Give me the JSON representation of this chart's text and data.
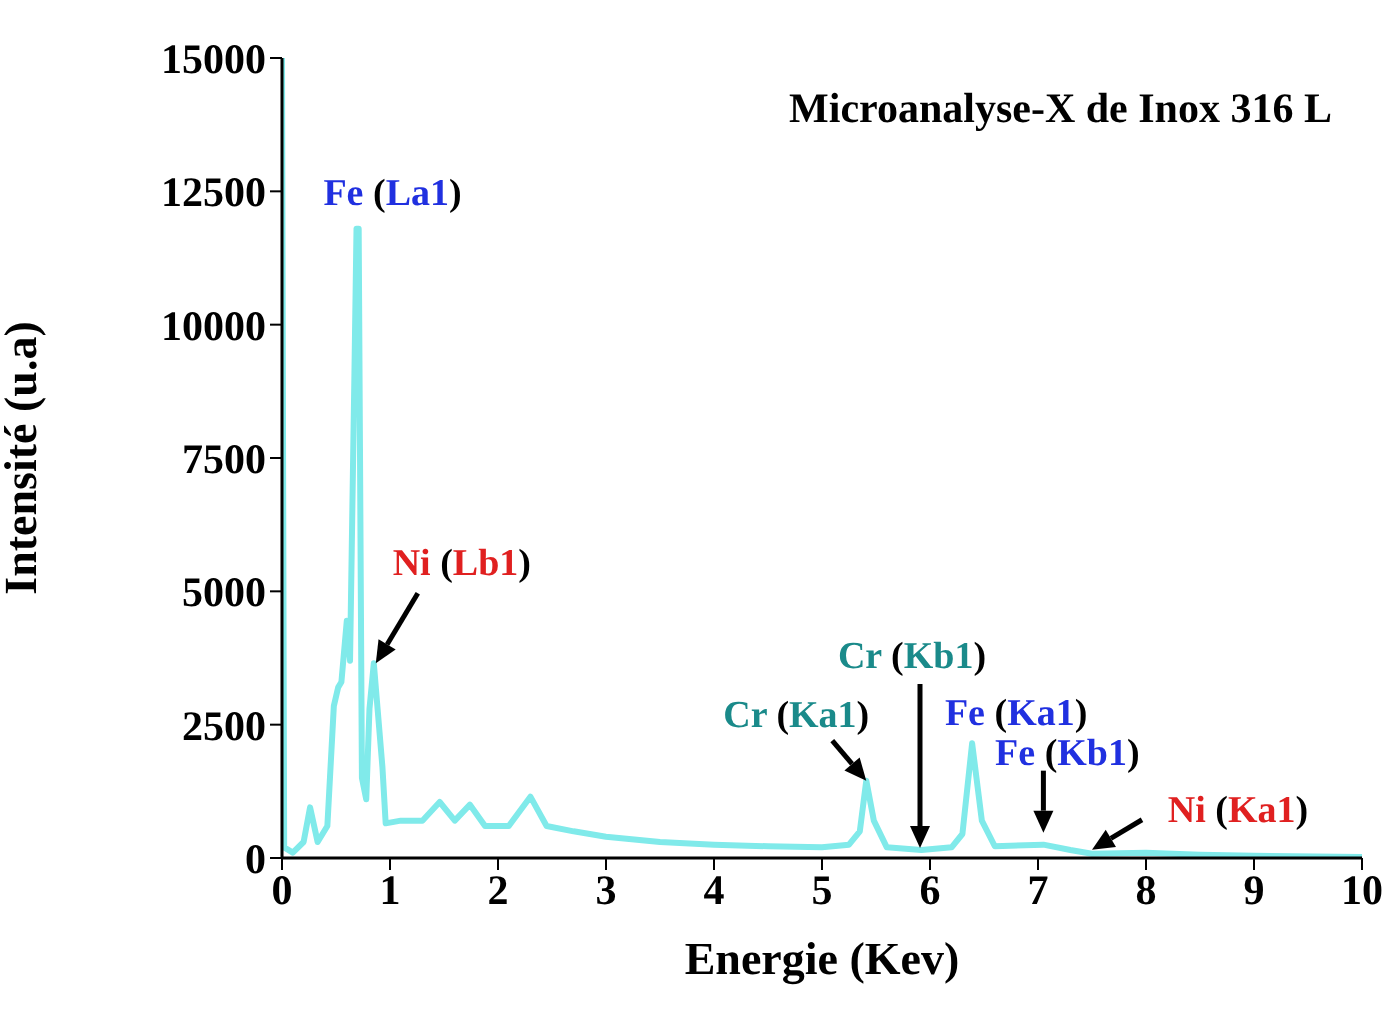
{
  "chart_data": {
    "type": "line",
    "title": "Microanalyse-X de Inox 316 L",
    "xlabel": "Energie (Kev)",
    "ylabel": "Intensité (u.a)",
    "series": [
      {
        "color": "#80eaea",
        "x": [
          0,
          0.02,
          0.1,
          0.2,
          0.26,
          0.33,
          0.42,
          0.48,
          0.52,
          0.55,
          0.6,
          0.63,
          0.67,
          0.69,
          0.71,
          0.74,
          0.78,
          0.81,
          0.85,
          0.93,
          0.96,
          1.1,
          1.3,
          1.46,
          1.6,
          1.74,
          1.88,
          2.1,
          2.3,
          2.45,
          2.7,
          3,
          3.5,
          4,
          4.5,
          5,
          5.25,
          5.35,
          5.41,
          5.48,
          5.6,
          5.92,
          6.2,
          6.3,
          6.39,
          6.48,
          6.6,
          7.05,
          7.3,
          7.5,
          8,
          8.5,
          9,
          10
        ],
        "values": [
          15000,
          200,
          100,
          300,
          950,
          300,
          600,
          2850,
          3200,
          3300,
          4450,
          3700,
          9000,
          11800,
          11800,
          1500,
          1100,
          2800,
          3650,
          1700,
          650,
          700,
          700,
          1050,
          700,
          1000,
          600,
          600,
          1150,
          600,
          500,
          400,
          300,
          250,
          220,
          200,
          250,
          500,
          1450,
          700,
          200,
          150,
          200,
          450,
          2150,
          700,
          220,
          250,
          150,
          80,
          100,
          60,
          40,
          20
        ]
      }
    ],
    "xlim": [
      0,
      10
    ],
    "xticks": [
      0,
      1,
      2,
      3,
      4,
      5,
      6,
      7,
      8,
      9,
      10
    ],
    "ylim": [
      0,
      15000
    ],
    "yticks": [
      0,
      2500,
      5000,
      7500,
      10000,
      12500,
      15000
    ],
    "marker": "none",
    "line_style": "solid",
    "annotations": [
      {
        "text": "Fe (La1)",
        "x": 0.69,
        "y": 11800
      },
      {
        "text": "Ni (Lb1)",
        "x": 0.85,
        "y": 3650
      },
      {
        "text": "Cr (Ka1)",
        "x": 5.41,
        "y": 1450
      },
      "Cr (Kb1)",
      {
        "text": "Fe (Ka1)",
        "x": 6.39,
        "y": 2150
      },
      {
        "text": "Fe (Kb1)",
        "x": 7.05,
        "y": 250
      },
      {
        "text": "Ni (Ka1)",
        "x": 7.5,
        "y": 80
      }
    ]
  }
}
